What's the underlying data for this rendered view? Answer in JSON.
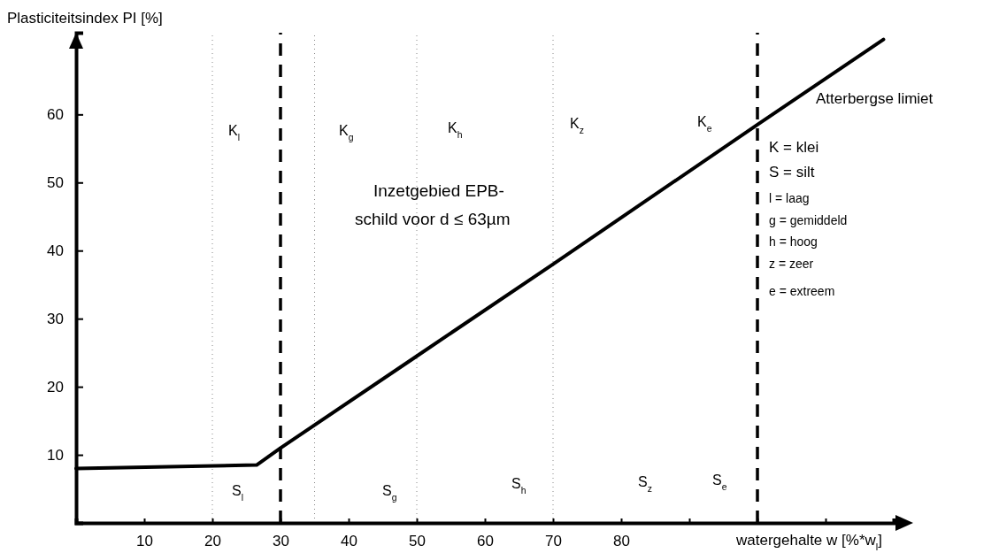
{
  "chart_data": {
    "type": "line",
    "ylabel": "Plasticiteitsindex PI [%]",
    "xlabel": "watergehalte w [%*w$_{l}$]",
    "series": [
      {
        "color": "#000000",
        "x": [
          0,
          26.5,
          30,
          50,
          70,
          100,
          118.5
        ],
        "values": [
          8,
          8.5,
          11,
          24.5,
          38,
          58.5,
          71
        ]
      }
    ],
    "xlim": [
      0,
      120
    ],
    "ylim": [
      0,
      72
    ],
    "xticks": [
      10,
      20,
      30,
      40,
      50,
      60,
      70,
      80,
      {
        "value": 90,
        "label": null
      },
      {
        "value": 100,
        "label": null
      },
      {
        "value": 110,
        "label": null
      }
    ],
    "yticks": [
      10,
      20,
      30,
      40,
      50,
      60
    ],
    "grid": false,
    "marker": "none",
    "line_style": "solid",
    "ref_lines": [
      {
        "axis": "x",
        "value": 30,
        "line_style": "dashed",
        "color": "#000000"
      },
      {
        "axis": "x",
        "value": 100,
        "line_style": "dashed",
        "color": "#000000"
      },
      {
        "axis": "x",
        "value": 20,
        "line_style": "dotted",
        "color": "#888888"
      },
      {
        "axis": "x",
        "value": 35,
        "line_style": "dotted",
        "color": "#888888"
      },
      {
        "axis": "x",
        "value": 50,
        "line_style": "dotted",
        "color": "#888888"
      },
      {
        "axis": "x",
        "value": 70,
        "line_style": "dotted",
        "color": "#888888"
      }
    ],
    "annotations": [
      "K$_{l}$",
      "K$_{g}$",
      "K$_{h}$",
      "K$_{z}$",
      "K$_{e}$",
      "S$_{l}$",
      "S$_{g}$",
      "S$_{h}$",
      "S$_{z}$",
      "S$_{e}$",
      "Atterbergse limiet",
      "Inzetgebied EPB-",
      "schild voor d ≤ 63µm",
      "K = klei",
      "S = silt",
      "l = laag",
      "g = gemiddeld",
      "h = hoog",
      "z = zeer",
      "e = extreem"
    ]
  }
}
